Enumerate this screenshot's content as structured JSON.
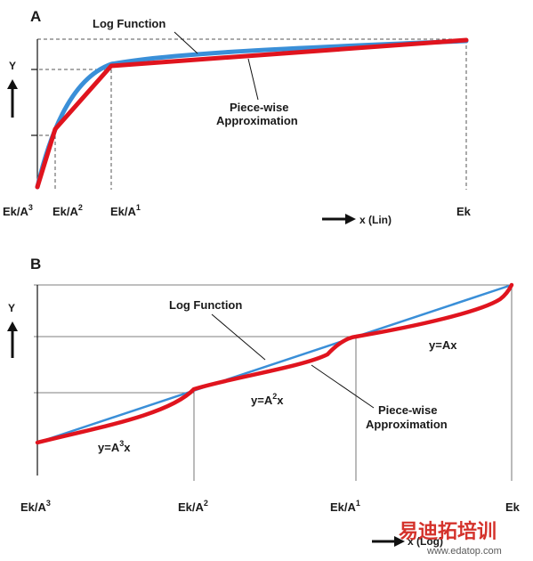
{
  "panelA": {
    "letter": "A",
    "log_label": "Log Function",
    "pw_label_line1": "Piece-wise",
    "pw_label_line2": "Approximation",
    "y_label": "Y",
    "x_axis_label": "x (Lin)",
    "ticks": [
      {
        "base": "Ek/A",
        "sup": "3"
      },
      {
        "base": "Ek/A",
        "sup": "2"
      },
      {
        "base": "Ek/A",
        "sup": "1"
      },
      {
        "base": "Ek",
        "sup": ""
      }
    ]
  },
  "panelB": {
    "letter": "B",
    "log_label": "Log Function",
    "pw_label_line1": "Piece-wise",
    "pw_label_line2": "Approximation",
    "y_label": "Y",
    "x_axis_label": "x (Log)",
    "segment_labels": [
      {
        "base": "y=A",
        "sup": "3",
        "tail": "x"
      },
      {
        "base": "y=A",
        "sup": "2",
        "tail": "x"
      },
      {
        "base": "y=Ax",
        "sup": "",
        "tail": ""
      }
    ],
    "ticks": [
      {
        "base": "Ek/A",
        "sup": "3"
      },
      {
        "base": "Ek/A",
        "sup": "2"
      },
      {
        "base": "Ek/A",
        "sup": "1"
      },
      {
        "base": "Ek",
        "sup": ""
      }
    ]
  },
  "watermark": {
    "cn": "易迪拓培训",
    "url": "www.edatop.com"
  },
  "colors": {
    "log_function": "#3a8fd8",
    "piecewise": "#e0141e",
    "guide": "#555555",
    "axis": "#111111"
  }
}
